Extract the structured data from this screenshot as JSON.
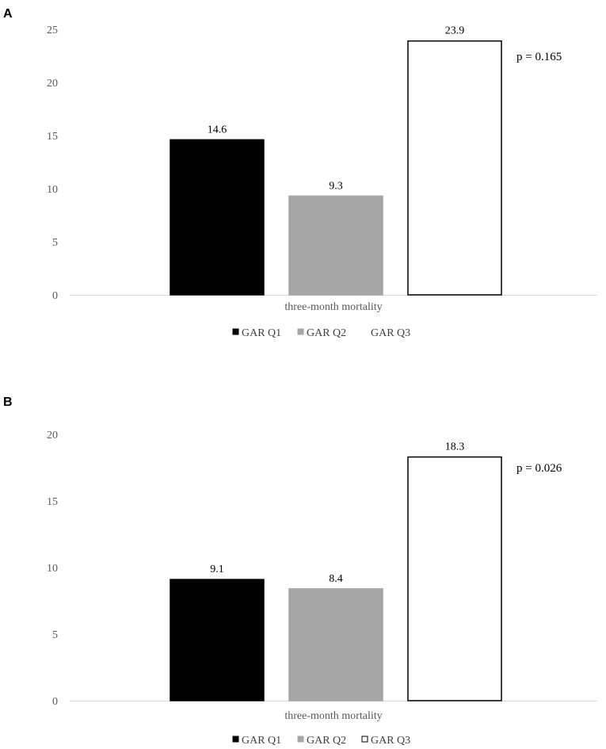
{
  "chart_data": [
    {
      "panel": "A",
      "type": "bar",
      "categories": [
        "three-month mortality"
      ],
      "series": [
        {
          "name": "GAR Q1",
          "values": [
            14.6
          ],
          "color": "#000000",
          "border": "#000000"
        },
        {
          "name": "GAR Q2",
          "values": [
            9.3
          ],
          "color": "#a6a6a6",
          "border": "#a6a6a6"
        },
        {
          "name": "GAR Q3",
          "values": [
            23.9
          ],
          "color": "#ffffff",
          "border": "#000000"
        }
      ],
      "yticks": [
        0,
        5,
        10,
        15,
        20,
        25
      ],
      "ylim": [
        0,
        25
      ],
      "data_labels": [
        "14.6",
        "9.3",
        "23.9"
      ],
      "annotation": "p = 0.165",
      "legend_position": "bottom",
      "legend_q3_marker": false
    },
    {
      "panel": "B",
      "type": "bar",
      "categories": [
        "three-month mortality"
      ],
      "series": [
        {
          "name": "GAR Q1",
          "values": [
            9.1
          ],
          "color": "#000000",
          "border": "#000000"
        },
        {
          "name": "GAR Q2",
          "values": [
            8.4
          ],
          "color": "#a6a6a6",
          "border": "#a6a6a6"
        },
        {
          "name": "GAR Q3",
          "values": [
            18.3
          ],
          "color": "#ffffff",
          "border": "#000000"
        }
      ],
      "yticks": [
        0,
        5,
        10,
        15,
        20
      ],
      "ylim": [
        0,
        20
      ],
      "data_labels": [
        "9.1",
        "8.4",
        "18.3"
      ],
      "annotation": "p = 0.026",
      "legend_position": "bottom",
      "legend_q3_marker": true
    }
  ]
}
